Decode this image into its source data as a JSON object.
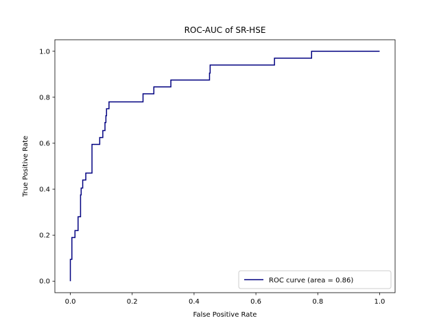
{
  "chart_data": {
    "type": "line",
    "title": "ROC-AUC of SR-HSE",
    "xlabel": "False Positive Rate",
    "ylabel": "True Positive Rate",
    "xlim": [
      -0.05,
      1.05
    ],
    "ylim": [
      -0.05,
      1.05
    ],
    "x_ticks": [
      0.0,
      0.2,
      0.4,
      0.6,
      0.8,
      1.0
    ],
    "y_ticks": [
      0.0,
      0.2,
      0.4,
      0.6,
      0.8,
      1.0
    ],
    "x_tick_labels": [
      "0.0",
      "0.2",
      "0.4",
      "0.6",
      "0.8",
      "1.0"
    ],
    "y_tick_labels": [
      "0.0",
      "0.2",
      "0.4",
      "0.6",
      "0.8",
      "1.0"
    ],
    "grid": false,
    "legend_position": "lower-right",
    "series": [
      {
        "name": "ROC curve (area = 0.86)",
        "color": "#000080",
        "x": [
          0.0,
          0.0,
          0.005,
          0.005,
          0.015,
          0.015,
          0.025,
          0.025,
          0.033,
          0.033,
          0.035,
          0.035,
          0.04,
          0.04,
          0.05,
          0.05,
          0.06,
          0.06,
          0.07,
          0.07,
          0.075,
          0.075,
          0.095,
          0.095,
          0.105,
          0.105,
          0.112,
          0.112,
          0.115,
          0.115,
          0.117,
          0.117,
          0.12,
          0.12,
          0.125,
          0.125,
          0.235,
          0.235,
          0.27,
          0.27,
          0.325,
          0.325,
          0.45,
          0.45,
          0.452,
          0.452,
          0.66,
          0.66,
          0.78,
          0.78,
          1.0
        ],
        "y": [
          0.0,
          0.095,
          0.095,
          0.19,
          0.19,
          0.22,
          0.22,
          0.28,
          0.28,
          0.375,
          0.375,
          0.405,
          0.405,
          0.44,
          0.44,
          0.47,
          0.47,
          0.47,
          0.47,
          0.595,
          0.595,
          0.595,
          0.595,
          0.625,
          0.625,
          0.655,
          0.655,
          0.69,
          0.69,
          0.72,
          0.72,
          0.75,
          0.75,
          0.75,
          0.75,
          0.78,
          0.78,
          0.815,
          0.815,
          0.845,
          0.845,
          0.875,
          0.875,
          0.905,
          0.905,
          0.94,
          0.94,
          0.97,
          0.97,
          1.0,
          1.0
        ]
      }
    ]
  }
}
